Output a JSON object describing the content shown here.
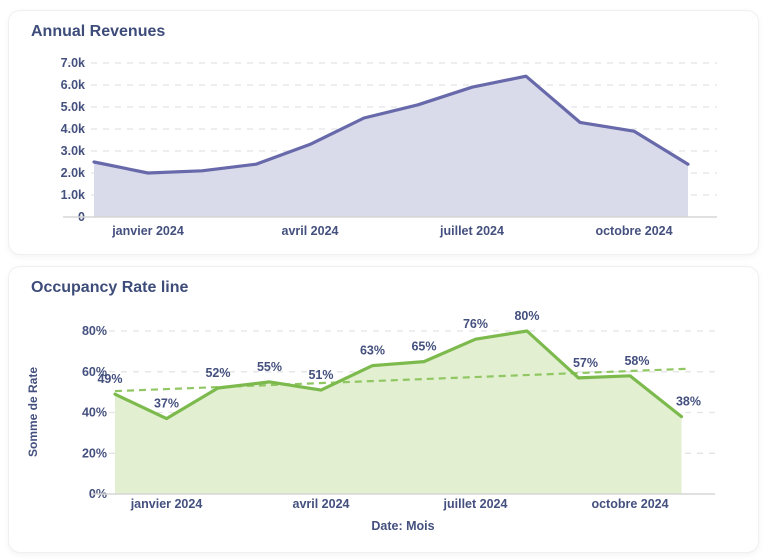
{
  "page": {
    "background": "#ffffff"
  },
  "chart_data": [
    {
      "type": "area",
      "title": "Annual Revenues",
      "unit": "thousands",
      "values": [
        2.5,
        2.0,
        2.1,
        2.4,
        3.3,
        4.5,
        5.1,
        5.9,
        6.4,
        4.3,
        3.9,
        2.4
      ],
      "ylim": [
        0,
        7
      ],
      "grid": "dashed-horizontal",
      "y_ticks": [
        {
          "value": 7,
          "label": "7.0k"
        },
        {
          "value": 6,
          "label": "6.0k"
        },
        {
          "value": 5,
          "label": "5.0k"
        },
        {
          "value": 4,
          "label": "4.0k"
        },
        {
          "value": 3,
          "label": "3.0k"
        },
        {
          "value": 2,
          "label": "2.0k"
        },
        {
          "value": 1,
          "label": "1.0k"
        },
        {
          "value": 0,
          "label": "0"
        }
      ],
      "x_tick_indices": [
        1,
        4,
        7,
        10
      ],
      "x_tick_labels": [
        "janvier 2024",
        "avril 2024",
        "juillet 2024",
        "octobre 2024"
      ],
      "xlabel": "",
      "ylabel": "",
      "colors": {
        "line": "#6769aa",
        "fill": "#d9daea",
        "text": "#44507e",
        "grid": "#e4e4e7",
        "axis": "#d6d6d6"
      }
    },
    {
      "type": "line-area",
      "title": "Occupancy Rate line",
      "values": [
        49,
        37,
        52,
        55,
        51,
        63,
        65,
        76,
        80,
        57,
        58,
        38
      ],
      "data_labels": [
        "49%",
        "37%",
        "52%",
        "55%",
        "51%",
        "63%",
        "65%",
        "76%",
        "80%",
        "57%",
        "58%",
        "38%"
      ],
      "ylim": [
        0,
        80
      ],
      "grid": "dashed-horizontal",
      "y_ticks": [
        {
          "value": 80,
          "label": "80%"
        },
        {
          "value": 60,
          "label": "60%"
        },
        {
          "value": 40,
          "label": "40%"
        },
        {
          "value": 20,
          "label": "20%"
        },
        {
          "value": 0,
          "label": "0%"
        }
      ],
      "x_tick_indices": [
        1,
        4,
        7,
        10
      ],
      "x_tick_labels": [
        "janvier 2024",
        "avril 2024",
        "juillet 2024",
        "octobre 2024"
      ],
      "xlabel": "Date: Mois",
      "ylabel": "Somme de Rate",
      "trend": {
        "start": 50.5,
        "end": 61.5,
        "style": "dashed"
      },
      "colors": {
        "line": "#7dba4d",
        "fill": "#e2efd1",
        "trend": "#90c763",
        "text": "#44507e",
        "grid": "#e4e4e7",
        "axis": "#d6d6d6"
      }
    }
  ]
}
